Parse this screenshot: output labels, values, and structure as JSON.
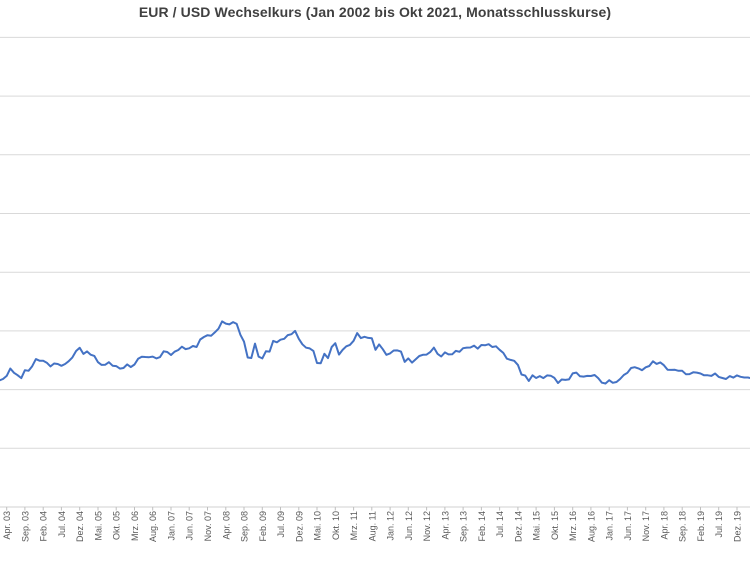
{
  "colors": {
    "line": "#4472C4",
    "gridline": "#D9D9D9",
    "axis": "#D0D0D0",
    "tick": "#BFBFBF",
    "title_text": "#404040",
    "label_text": "#595959",
    "background": "#FFFFFF"
  },
  "chart_data": {
    "type": "line",
    "title": "EUR / USD Wechselkurs (Jan 2002 bis Okt 2021, Monatsschlusskurse)",
    "series": [
      {
        "name": "EUR / USD Monatsschlusskurse",
        "start_month": "Jan 2002",
        "end_month": "Okt 2021",
        "values": [
          0.859,
          0.867,
          0.872,
          0.901,
          0.934,
          0.99,
          0.978,
          0.982,
          0.988,
          0.991,
          0.993,
          1.049,
          1.077,
          1.078,
          1.09,
          1.117,
          1.18,
          1.143,
          1.123,
          1.098,
          1.165,
          1.16,
          1.199,
          1.26,
          1.246,
          1.245,
          1.229,
          1.198,
          1.222,
          1.218,
          1.203,
          1.218,
          1.242,
          1.274,
          1.329,
          1.356,
          1.304,
          1.325,
          1.297,
          1.287,
          1.233,
          1.21,
          1.212,
          1.233,
          1.204,
          1.2,
          1.179,
          1.184,
          1.215,
          1.192,
          1.214,
          1.262,
          1.28,
          1.278,
          1.276,
          1.281,
          1.266,
          1.277,
          1.326,
          1.32,
          1.295,
          1.323,
          1.337,
          1.365,
          1.345,
          1.352,
          1.371,
          1.363,
          1.427,
          1.448,
          1.463,
          1.459,
          1.487,
          1.519,
          1.581,
          1.562,
          1.555,
          1.575,
          1.56,
          1.467,
          1.409,
          1.273,
          1.269,
          1.392,
          1.281,
          1.266,
          1.326,
          1.324,
          1.415,
          1.403,
          1.425,
          1.433,
          1.464,
          1.472,
          1.5,
          1.433,
          1.386,
          1.357,
          1.351,
          1.33,
          1.227,
          1.224,
          1.305,
          1.268,
          1.363,
          1.395,
          1.298,
          1.338,
          1.369,
          1.381,
          1.416,
          1.481,
          1.439,
          1.45,
          1.44,
          1.438,
          1.339,
          1.385,
          1.344,
          1.296,
          1.308,
          1.333,
          1.334,
          1.324,
          1.236,
          1.266,
          1.23,
          1.257,
          1.286,
          1.296,
          1.298,
          1.319,
          1.358,
          1.305,
          1.282,
          1.317,
          1.3,
          1.301,
          1.33,
          1.322,
          1.353,
          1.358,
          1.359,
          1.374,
          1.349,
          1.38,
          1.377,
          1.387,
          1.363,
          1.369,
          1.339,
          1.313,
          1.263,
          1.253,
          1.245,
          1.21,
          1.129,
          1.119,
          1.073,
          1.122,
          1.099,
          1.115,
          1.098,
          1.121,
          1.118,
          1.1,
          1.056,
          1.086,
          1.083,
          1.087,
          1.138,
          1.145,
          1.113,
          1.111,
          1.117,
          1.116,
          1.124,
          1.098,
          1.059,
          1.052,
          1.08,
          1.058,
          1.065,
          1.09,
          1.124,
          1.143,
          1.184,
          1.191,
          1.181,
          1.165,
          1.19,
          1.201,
          1.241,
          1.219,
          1.232,
          1.208,
          1.169,
          1.168,
          1.169,
          1.16,
          1.16,
          1.131,
          1.132,
          1.147,
          1.145,
          1.137,
          1.122,
          1.122,
          1.117,
          1.137,
          1.108,
          1.099,
          1.09,
          1.115,
          1.102,
          1.121,
          1.109,
          1.103,
          1.103,
          1.095,
          1.11,
          1.123,
          1.178,
          1.194,
          1.172,
          1.165,
          1.193,
          1.222,
          1.213,
          1.207,
          1.173,
          1.202,
          1.219,
          1.186,
          1.187,
          1.181,
          1.158,
          1.156
        ]
      }
    ],
    "x_tick_labels": [
      "Apr. 03",
      "Sep. 03",
      "Feb. 04",
      "Jul. 04",
      "Dez. 04",
      "Mai. 05",
      "Okt. 05",
      "Mrz. 06",
      "Aug. 06",
      "Jan. 07",
      "Jun. 07",
      "Nov. 07",
      "Apr. 08",
      "Sep. 08",
      "Feb. 09",
      "Jul. 09",
      "Dez. 09",
      "Mai. 10",
      "Okt. 10",
      "Mrz. 11",
      "Aug. 11",
      "Jan. 12",
      "Jun. 12",
      "Nov. 12",
      "Apr. 13",
      "Sep. 13",
      "Feb. 14",
      "Jul. 14",
      "Dez. 14",
      "Mai. 15",
      "Okt. 15",
      "Mrz. 16",
      "Aug. 16",
      "Jan. 17",
      "Jun. 17",
      "Nov. 17",
      "Apr. 18",
      "Sep. 18",
      "Feb. 19",
      "Jul. 19",
      "Dez. 19"
    ],
    "x_tick_interval_months": 5,
    "first_tick_month_offset": 15,
    "ylim": [
      0,
      4
    ],
    "y_gridline_step": 0.5,
    "y_axis_labels_visible": false,
    "grid": "horizontal"
  }
}
